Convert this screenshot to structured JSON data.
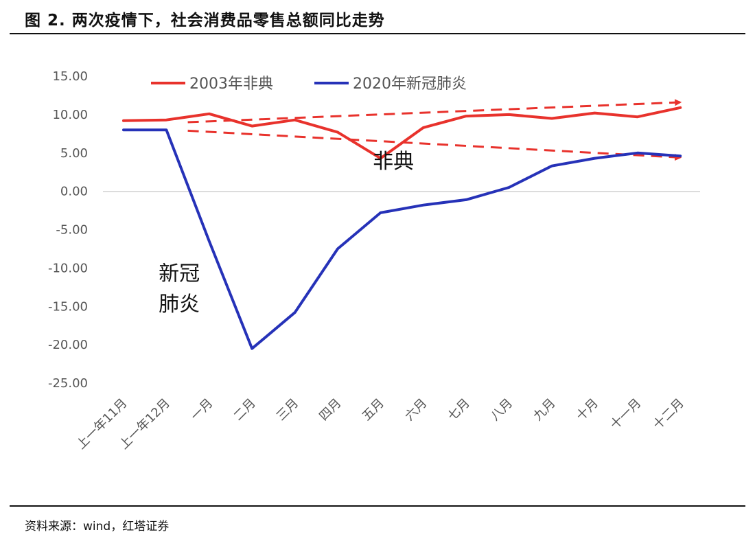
{
  "title": "图 2. 两次疫情下，社会消费品零售总额同比走势",
  "source": "资料来源：wind，红塔证券",
  "chart_data": {
    "type": "line",
    "categories": [
      "上一年11月",
      "上一年12月",
      "一月",
      "二月",
      "三月",
      "四月",
      "五月",
      "六月",
      "七月",
      "八月",
      "九月",
      "十月",
      "十一月",
      "十二月"
    ],
    "y_ticks": [
      "15.00",
      "10.00",
      "5.00",
      "0.00",
      "-5.00",
      "-10.00",
      "-15.00",
      "-20.00",
      "-25.00"
    ],
    "ylim": [
      -25,
      15
    ],
    "grid": false,
    "legend_position": "top",
    "series": [
      {
        "name": "2003年非典",
        "color": "#e8322c",
        "values": [
          9.2,
          9.3,
          10.1,
          8.5,
          9.3,
          7.7,
          4.3,
          8.3,
          9.8,
          10.0,
          9.5,
          10.2,
          9.7,
          10.9
        ]
      },
      {
        "name": "2020年新冠肺炎",
        "color": "#2632b8",
        "values": [
          8.0,
          8.0,
          -6.5,
          -20.5,
          -15.8,
          -7.5,
          -2.8,
          -1.8,
          -1.1,
          0.5,
          3.3,
          4.3,
          5.0,
          4.6
        ]
      }
    ],
    "trend_arrows": [
      {
        "color": "#e8322c",
        "from": [
          1.5,
          9.0
        ],
        "to": [
          13.0,
          11.6
        ]
      },
      {
        "color": "#e8322c",
        "from": [
          1.5,
          7.9
        ],
        "to": [
          13.0,
          4.4
        ]
      }
    ],
    "annotations": [
      {
        "text": "非典",
        "x": 6.3,
        "y": 3.0
      },
      {
        "text": "新冠",
        "x": 1.3,
        "y": -11.6
      },
      {
        "text": "肺炎",
        "x": 1.3,
        "y": -15.6
      }
    ]
  }
}
